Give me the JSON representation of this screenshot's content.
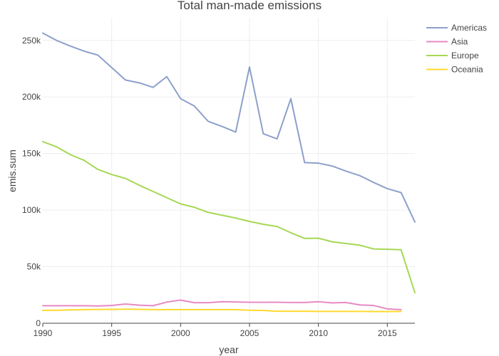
{
  "chart_data": {
    "type": "line",
    "title": "Total man-made emissions",
    "xlabel": "year",
    "ylabel": "emis.sum",
    "xlim": [
      1990,
      2017
    ],
    "ylim": [
      0,
      270000
    ],
    "x_ticks": [
      1990,
      1995,
      2000,
      2005,
      2010,
      2015
    ],
    "x_tick_labels": [
      "1990",
      "1995",
      "2000",
      "2005",
      "2010",
      "2015"
    ],
    "y_ticks": [
      0,
      50000,
      100000,
      150000,
      200000,
      250000
    ],
    "y_tick_labels": [
      "0",
      "50k",
      "100k",
      "150k",
      "200k",
      "250k"
    ],
    "grid": true,
    "legend_position": "top-right",
    "series": [
      {
        "name": "Americas",
        "color": "#8da0cb",
        "x": [
          1990,
          1991,
          1992,
          1993,
          1994,
          1995,
          1996,
          1997,
          1998,
          1999,
          2000,
          2001,
          2002,
          2003,
          2004,
          2005,
          2006,
          2007,
          2008,
          2009,
          2010,
          2011,
          2012,
          2013,
          2014,
          2015,
          2016,
          2017
        ],
        "values": [
          256500,
          250000,
          245000,
          240500,
          237000,
          226000,
          215000,
          212500,
          208500,
          218000,
          198500,
          192000,
          178500,
          174000,
          169000,
          226500,
          167500,
          163000,
          198500,
          142000,
          141500,
          139000,
          134500,
          130500,
          124500,
          119000,
          115500,
          89500
        ]
      },
      {
        "name": "Asia",
        "color": "#e78ac3",
        "x": [
          1990,
          1991,
          1992,
          1993,
          1994,
          1995,
          1996,
          1997,
          1998,
          1999,
          2000,
          2001,
          2002,
          2003,
          2004,
          2005,
          2006,
          2007,
          2008,
          2009,
          2010,
          2011,
          2012,
          2013,
          2014,
          2015,
          2016
        ],
        "values": [
          15500,
          15500,
          15500,
          15500,
          15300,
          15700,
          17000,
          16000,
          15500,
          18700,
          20500,
          18200,
          18200,
          19000,
          18800,
          18600,
          18500,
          18600,
          18300,
          18300,
          19000,
          18000,
          18300,
          16200,
          15700,
          12700,
          12000
        ]
      },
      {
        "name": "Europe",
        "color": "#a6d854",
        "x": [
          1990,
          1991,
          1992,
          1993,
          1994,
          1995,
          1996,
          1997,
          1998,
          1999,
          2000,
          2001,
          2002,
          2003,
          2004,
          2005,
          2006,
          2007,
          2008,
          2009,
          2010,
          2011,
          2012,
          2013,
          2014,
          2015,
          2016,
          2017
        ],
        "values": [
          160500,
          156000,
          149000,
          144000,
          136000,
          131500,
          128000,
          122000,
          116500,
          111000,
          105500,
          102500,
          98000,
          95500,
          93000,
          90000,
          87500,
          85500,
          80000,
          75000,
          75200,
          72000,
          70500,
          69000,
          65700,
          65400,
          65000,
          27000
        ]
      },
      {
        "name": "Oceania",
        "color": "#ffd92f",
        "x": [
          1990,
          1991,
          1992,
          1993,
          1994,
          1995,
          1996,
          1997,
          1998,
          1999,
          2000,
          2001,
          2002,
          2003,
          2004,
          2005,
          2006,
          2007,
          2008,
          2009,
          2010,
          2011,
          2012,
          2013,
          2014,
          2015,
          2016
        ],
        "values": [
          11300,
          11500,
          11800,
          12000,
          12200,
          12300,
          12400,
          12300,
          12000,
          12000,
          12000,
          12000,
          12000,
          12000,
          12000,
          11500,
          11300,
          10600,
          10600,
          10600,
          10500,
          10500,
          10500,
          10500,
          10400,
          10300,
          10500
        ]
      }
    ]
  }
}
